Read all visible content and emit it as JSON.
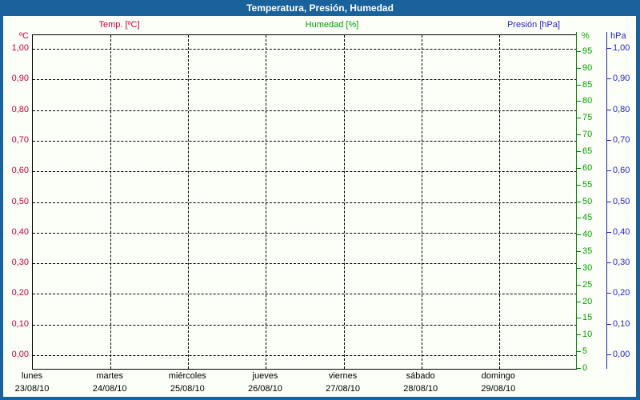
{
  "title": "Temperatura, Presión, Humedad",
  "legend": [
    {
      "label": "Temp. [ºC]",
      "color": "#cc0033"
    },
    {
      "label": "Humedad [%]",
      "color": "#00a000"
    },
    {
      "label": "Presión [hPa]",
      "color": "#2424cc"
    }
  ],
  "axes": {
    "temperature": {
      "unit": "ºC",
      "color": "#cc0033",
      "side": "left",
      "ticks": [
        {
          "v": 1.0,
          "label": "1,00"
        },
        {
          "v": 0.9,
          "label": "0,90"
        },
        {
          "v": 0.8,
          "label": "0,80"
        },
        {
          "v": 0.7,
          "label": "0,70"
        },
        {
          "v": 0.6,
          "label": "0,60"
        },
        {
          "v": 0.5,
          "label": "0,50"
        },
        {
          "v": 0.4,
          "label": "0,40"
        },
        {
          "v": 0.3,
          "label": "0,30"
        },
        {
          "v": 0.2,
          "label": "0,20"
        },
        {
          "v": 0.1,
          "label": "0,10"
        },
        {
          "v": 0.0,
          "label": "0,00"
        }
      ]
    },
    "humidity": {
      "unit": "%",
      "color": "#00a300",
      "side": "right-inner",
      "ticks": [
        {
          "v": 95,
          "label": "95"
        },
        {
          "v": 90,
          "label": "90"
        },
        {
          "v": 85,
          "label": "85"
        },
        {
          "v": 80,
          "label": "80"
        },
        {
          "v": 75,
          "label": "75"
        },
        {
          "v": 70,
          "label": "70"
        },
        {
          "v": 65,
          "label": "65"
        },
        {
          "v": 60,
          "label": "60"
        },
        {
          "v": 55,
          "label": "55"
        },
        {
          "v": 50,
          "label": "50"
        },
        {
          "v": 45,
          "label": "45"
        },
        {
          "v": 40,
          "label": "40"
        },
        {
          "v": 35,
          "label": "35"
        },
        {
          "v": 30,
          "label": "30"
        },
        {
          "v": 25,
          "label": "25"
        },
        {
          "v": 20,
          "label": "20"
        },
        {
          "v": 15,
          "label": "15"
        },
        {
          "v": 10,
          "label": "10"
        },
        {
          "v": 5,
          "label": "5"
        },
        {
          "v": 0,
          "label": "0"
        }
      ]
    },
    "pressure": {
      "unit": "hPa",
      "color": "#2424cc",
      "side": "right-outer",
      "ticks": [
        {
          "v": 1.0,
          "label": "1,00"
        },
        {
          "v": 0.9,
          "label": "0,90"
        },
        {
          "v": 0.8,
          "label": "0,80"
        },
        {
          "v": 0.7,
          "label": "0,70"
        },
        {
          "v": 0.6,
          "label": "0,60"
        },
        {
          "v": 0.5,
          "label": "0,50"
        },
        {
          "v": 0.4,
          "label": "0,40"
        },
        {
          "v": 0.3,
          "label": "0,30"
        },
        {
          "v": 0.2,
          "label": "0,20"
        },
        {
          "v": 0.1,
          "label": "0,10"
        },
        {
          "v": 0.0,
          "label": "0,00"
        }
      ]
    }
  },
  "x_axis": {
    "days": [
      {
        "name": "lunes",
        "date": "23/08/10"
      },
      {
        "name": "martes",
        "date": "24/08/10"
      },
      {
        "name": "miércoles",
        "date": "25/08/10"
      },
      {
        "name": "jueves",
        "date": "26/08/10"
      },
      {
        "name": "viernes",
        "date": "27/08/10"
      },
      {
        "name": "sábado",
        "date": "28/08/10"
      },
      {
        "name": "domingo",
        "date": "29/08/10"
      }
    ]
  },
  "colors": {
    "frame_blue": "#19629b",
    "background": "#fcfef8",
    "grid": "#000000"
  },
  "chart_data": {
    "type": "line",
    "title": "Temperatura, Presión, Humedad",
    "categories": [
      "lunes 23/08/10",
      "martes 24/08/10",
      "miércoles 25/08/10",
      "jueves 26/08/10",
      "viernes 27/08/10",
      "sábado 28/08/10",
      "domingo 29/08/10"
    ],
    "series": [
      {
        "name": "Temp. [ºC]",
        "color": "#cc0033",
        "axis": "left ºC 0,00–1,00",
        "values": []
      },
      {
        "name": "Humedad [%]",
        "color": "#00a000",
        "axis": "right % 0–95",
        "values": []
      },
      {
        "name": "Presión [hPa]",
        "color": "#2424cc",
        "axis": "right hPa 0,00–1,00",
        "values": []
      }
    ],
    "ylim_temperature": [
      0.0,
      1.0
    ],
    "ylim_humidity": [
      0,
      100
    ],
    "ylim_pressure": [
      0.0,
      1.0
    ],
    "grid": "dashed black, horizontal every 0,10 and vertical per day",
    "legend_position": "top",
    "note": "empty chart grid - no data points plotted"
  }
}
